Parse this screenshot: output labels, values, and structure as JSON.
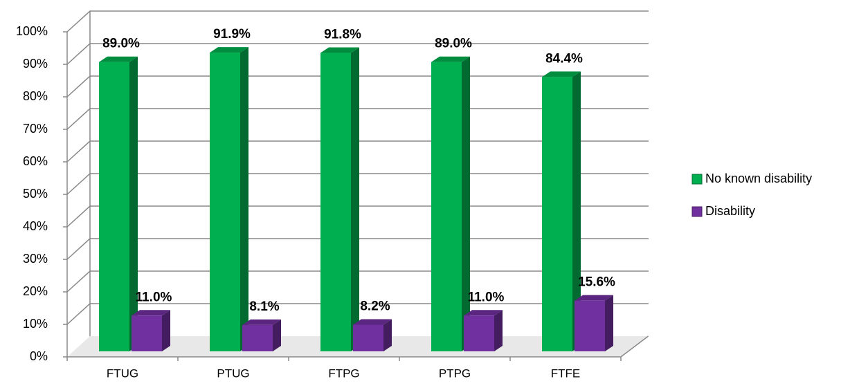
{
  "chart_data": {
    "type": "bar3d",
    "categories": [
      "FTUG",
      "PTUG",
      "FTPG",
      "PTPG",
      "FTFE"
    ],
    "series": [
      {
        "name": "No known disability",
        "color": "#00b050",
        "values": [
          89.0,
          91.9,
          91.8,
          89.0,
          84.4
        ],
        "value_labels": [
          "89.0%",
          "91.9%",
          "91.8%",
          "89.0%",
          "84.4%"
        ]
      },
      {
        "name": "Disability",
        "color": "#7030a0",
        "values": [
          11.0,
          8.1,
          8.2,
          11.0,
          15.6
        ],
        "value_labels": [
          "11.0%",
          "8.1%",
          "8.2%",
          "11.0%",
          "15.6%"
        ]
      }
    ],
    "ylim": [
      0,
      100
    ],
    "yticks": [
      {
        "value": 0,
        "label": "0%"
      },
      {
        "value": 10,
        "label": "10%"
      },
      {
        "value": 20,
        "label": "20%"
      },
      {
        "value": 30,
        "label": "30%"
      },
      {
        "value": 40,
        "label": "40%"
      },
      {
        "value": 50,
        "label": "50%"
      },
      {
        "value": 60,
        "label": "60%"
      },
      {
        "value": 70,
        "label": "70%"
      },
      {
        "value": 80,
        "label": "80%"
      },
      {
        "value": 90,
        "label": "90%"
      },
      {
        "value": 100,
        "label": "100%"
      }
    ],
    "grid": true,
    "legend": "right"
  }
}
